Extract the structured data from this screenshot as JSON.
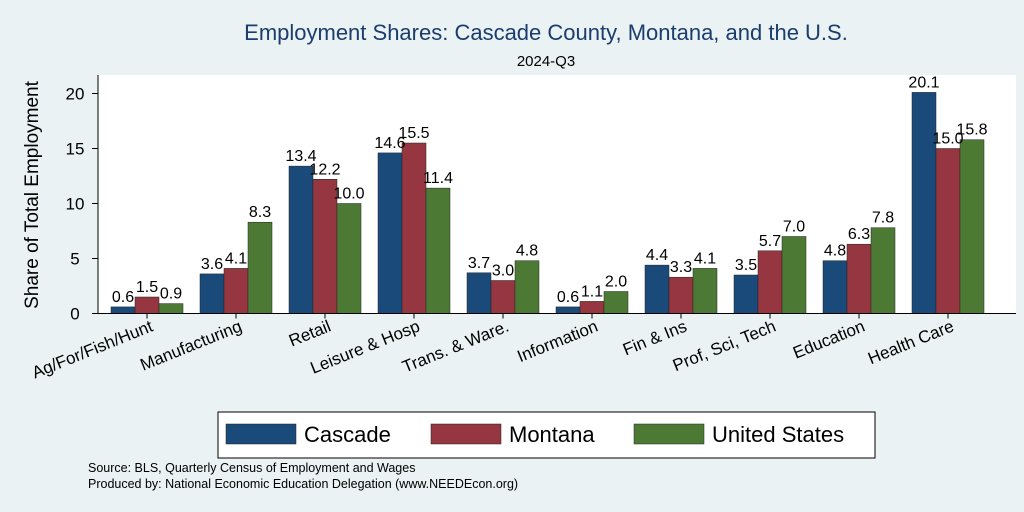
{
  "chart_data": {
    "type": "bar",
    "title": "Employment Shares: Cascade County, Montana, and the U.S.",
    "subtitle": "2024-Q3",
    "ylabel": "Share of Total Employment",
    "xlabel": "",
    "ylim": [
      0,
      22
    ],
    "yticks": [
      0,
      5,
      10,
      15,
      20
    ],
    "grid": false,
    "legend_position": "bottom",
    "categories": [
      "Ag/For/Fish/Hunt",
      "Manufacturing",
      "Retail",
      "Leisure & Hosp",
      "Trans. & Ware.",
      "Information",
      "Fin & Ins",
      "Prof, Sci, Tech",
      "Education",
      "Health Care"
    ],
    "series": [
      {
        "name": "Cascade",
        "color": "#1a4a7a",
        "values": [
          0.6,
          3.6,
          13.4,
          14.6,
          3.7,
          0.6,
          4.4,
          3.5,
          4.8,
          20.1
        ],
        "labels": [
          "0.6",
          "3.6",
          "13.4",
          "14.6",
          "3.7",
          "0.6",
          "4.4",
          "3.5",
          "4.8",
          "20.1"
        ]
      },
      {
        "name": "Montana",
        "color": "#963640",
        "values": [
          1.5,
          4.1,
          12.2,
          15.5,
          3.0,
          1.1,
          3.3,
          5.7,
          6.3,
          15.0
        ],
        "labels": [
          "1.5",
          "4.1",
          "12.2",
          "15.5",
          "3.0",
          "1.1",
          "3.3",
          "5.7",
          "6.3",
          "15.0"
        ]
      },
      {
        "name": "United States",
        "color": "#4c7a34",
        "values": [
          0.9,
          8.3,
          10.0,
          11.4,
          4.8,
          2.0,
          4.1,
          7.0,
          7.8,
          15.8
        ],
        "labels": [
          "0.9",
          "8.3",
          "10.0",
          "11.4",
          "4.8",
          "2.0",
          "4.1",
          "7.0",
          "7.8",
          "15.8"
        ]
      }
    ]
  },
  "notes": {
    "source": "Source: BLS, Quarterly Census of Employment and Wages",
    "produced_by": "Produced by: National Economic Education Delegation (www.NEEDEcon.org)"
  },
  "colors": {
    "background": "#eaf2f3",
    "plot_background": "#ffffff",
    "title": "#1a3d6e"
  }
}
